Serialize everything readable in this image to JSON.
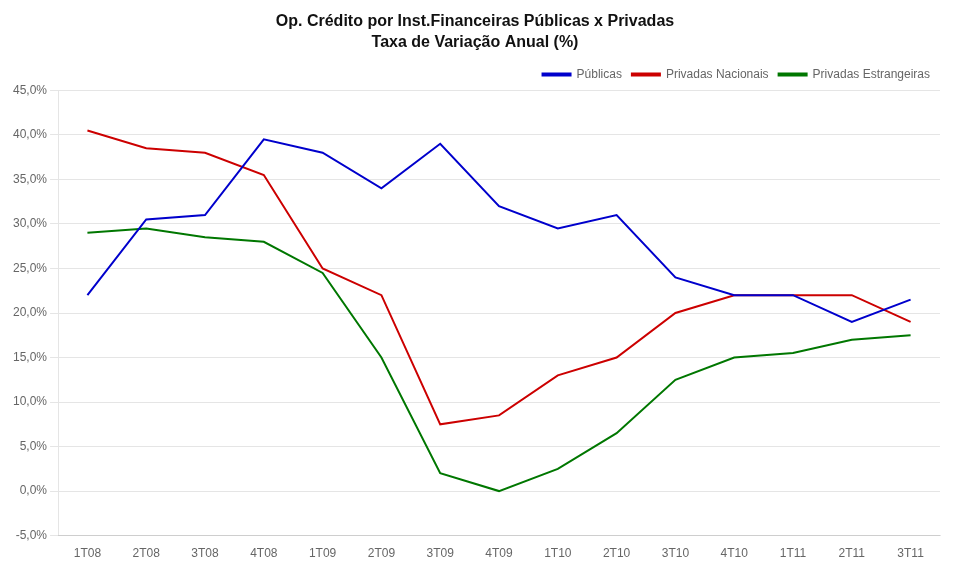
{
  "chart_data": {
    "type": "line",
    "title": "Op. Crédito por Inst.Financeiras Públicas x Privadas",
    "subtitle": "Taxa de Variação Anual (%)",
    "categories": [
      "1T08",
      "2T08",
      "3T08",
      "4T08",
      "1T09",
      "2T09",
      "3T09",
      "4T09",
      "1T10",
      "2T10",
      "3T10",
      "4T10",
      "1T11",
      "2T11",
      "3T11"
    ],
    "series": [
      {
        "name": "Públicas",
        "color": "#0000cc",
        "values": [
          22.0,
          30.5,
          31.0,
          39.5,
          38.0,
          34.0,
          39.0,
          32.0,
          29.5,
          31.0,
          24.0,
          22.0,
          22.0,
          19.0,
          21.5
        ]
      },
      {
        "name": "Privadas Nacionais",
        "color": "#cc0000",
        "values": [
          40.5,
          38.5,
          38.0,
          35.5,
          25.0,
          22.0,
          7.5,
          8.5,
          13.0,
          15.0,
          20.0,
          22.0,
          22.0,
          22.0,
          19.0
        ]
      },
      {
        "name": "Privadas Estrangeiras",
        "color": "#007700",
        "values": [
          29.0,
          29.5,
          28.5,
          28.0,
          24.5,
          15.0,
          2.0,
          0.0,
          2.5,
          6.5,
          12.5,
          15.0,
          15.5,
          17.0,
          17.5
        ]
      }
    ],
    "ylim": [
      -5.0,
      45.0
    ],
    "yticks": [
      {
        "value": -5.0,
        "label": "-5,0%"
      },
      {
        "value": 0.0,
        "label": "0,0%"
      },
      {
        "value": 5.0,
        "label": "5,0%"
      },
      {
        "value": 10.0,
        "label": "10,0%"
      },
      {
        "value": 15.0,
        "label": "15,0%"
      },
      {
        "value": 20.0,
        "label": "20,0%"
      },
      {
        "value": 25.0,
        "label": "25,0%"
      },
      {
        "value": 30.0,
        "label": "30,0%"
      },
      {
        "value": 35.0,
        "label": "35,0%"
      },
      {
        "value": 40.0,
        "label": "40,0%"
      },
      {
        "value": 45.0,
        "label": "45,0%"
      }
    ],
    "grid": "y",
    "legend": "upper right",
    "marker": "none"
  }
}
